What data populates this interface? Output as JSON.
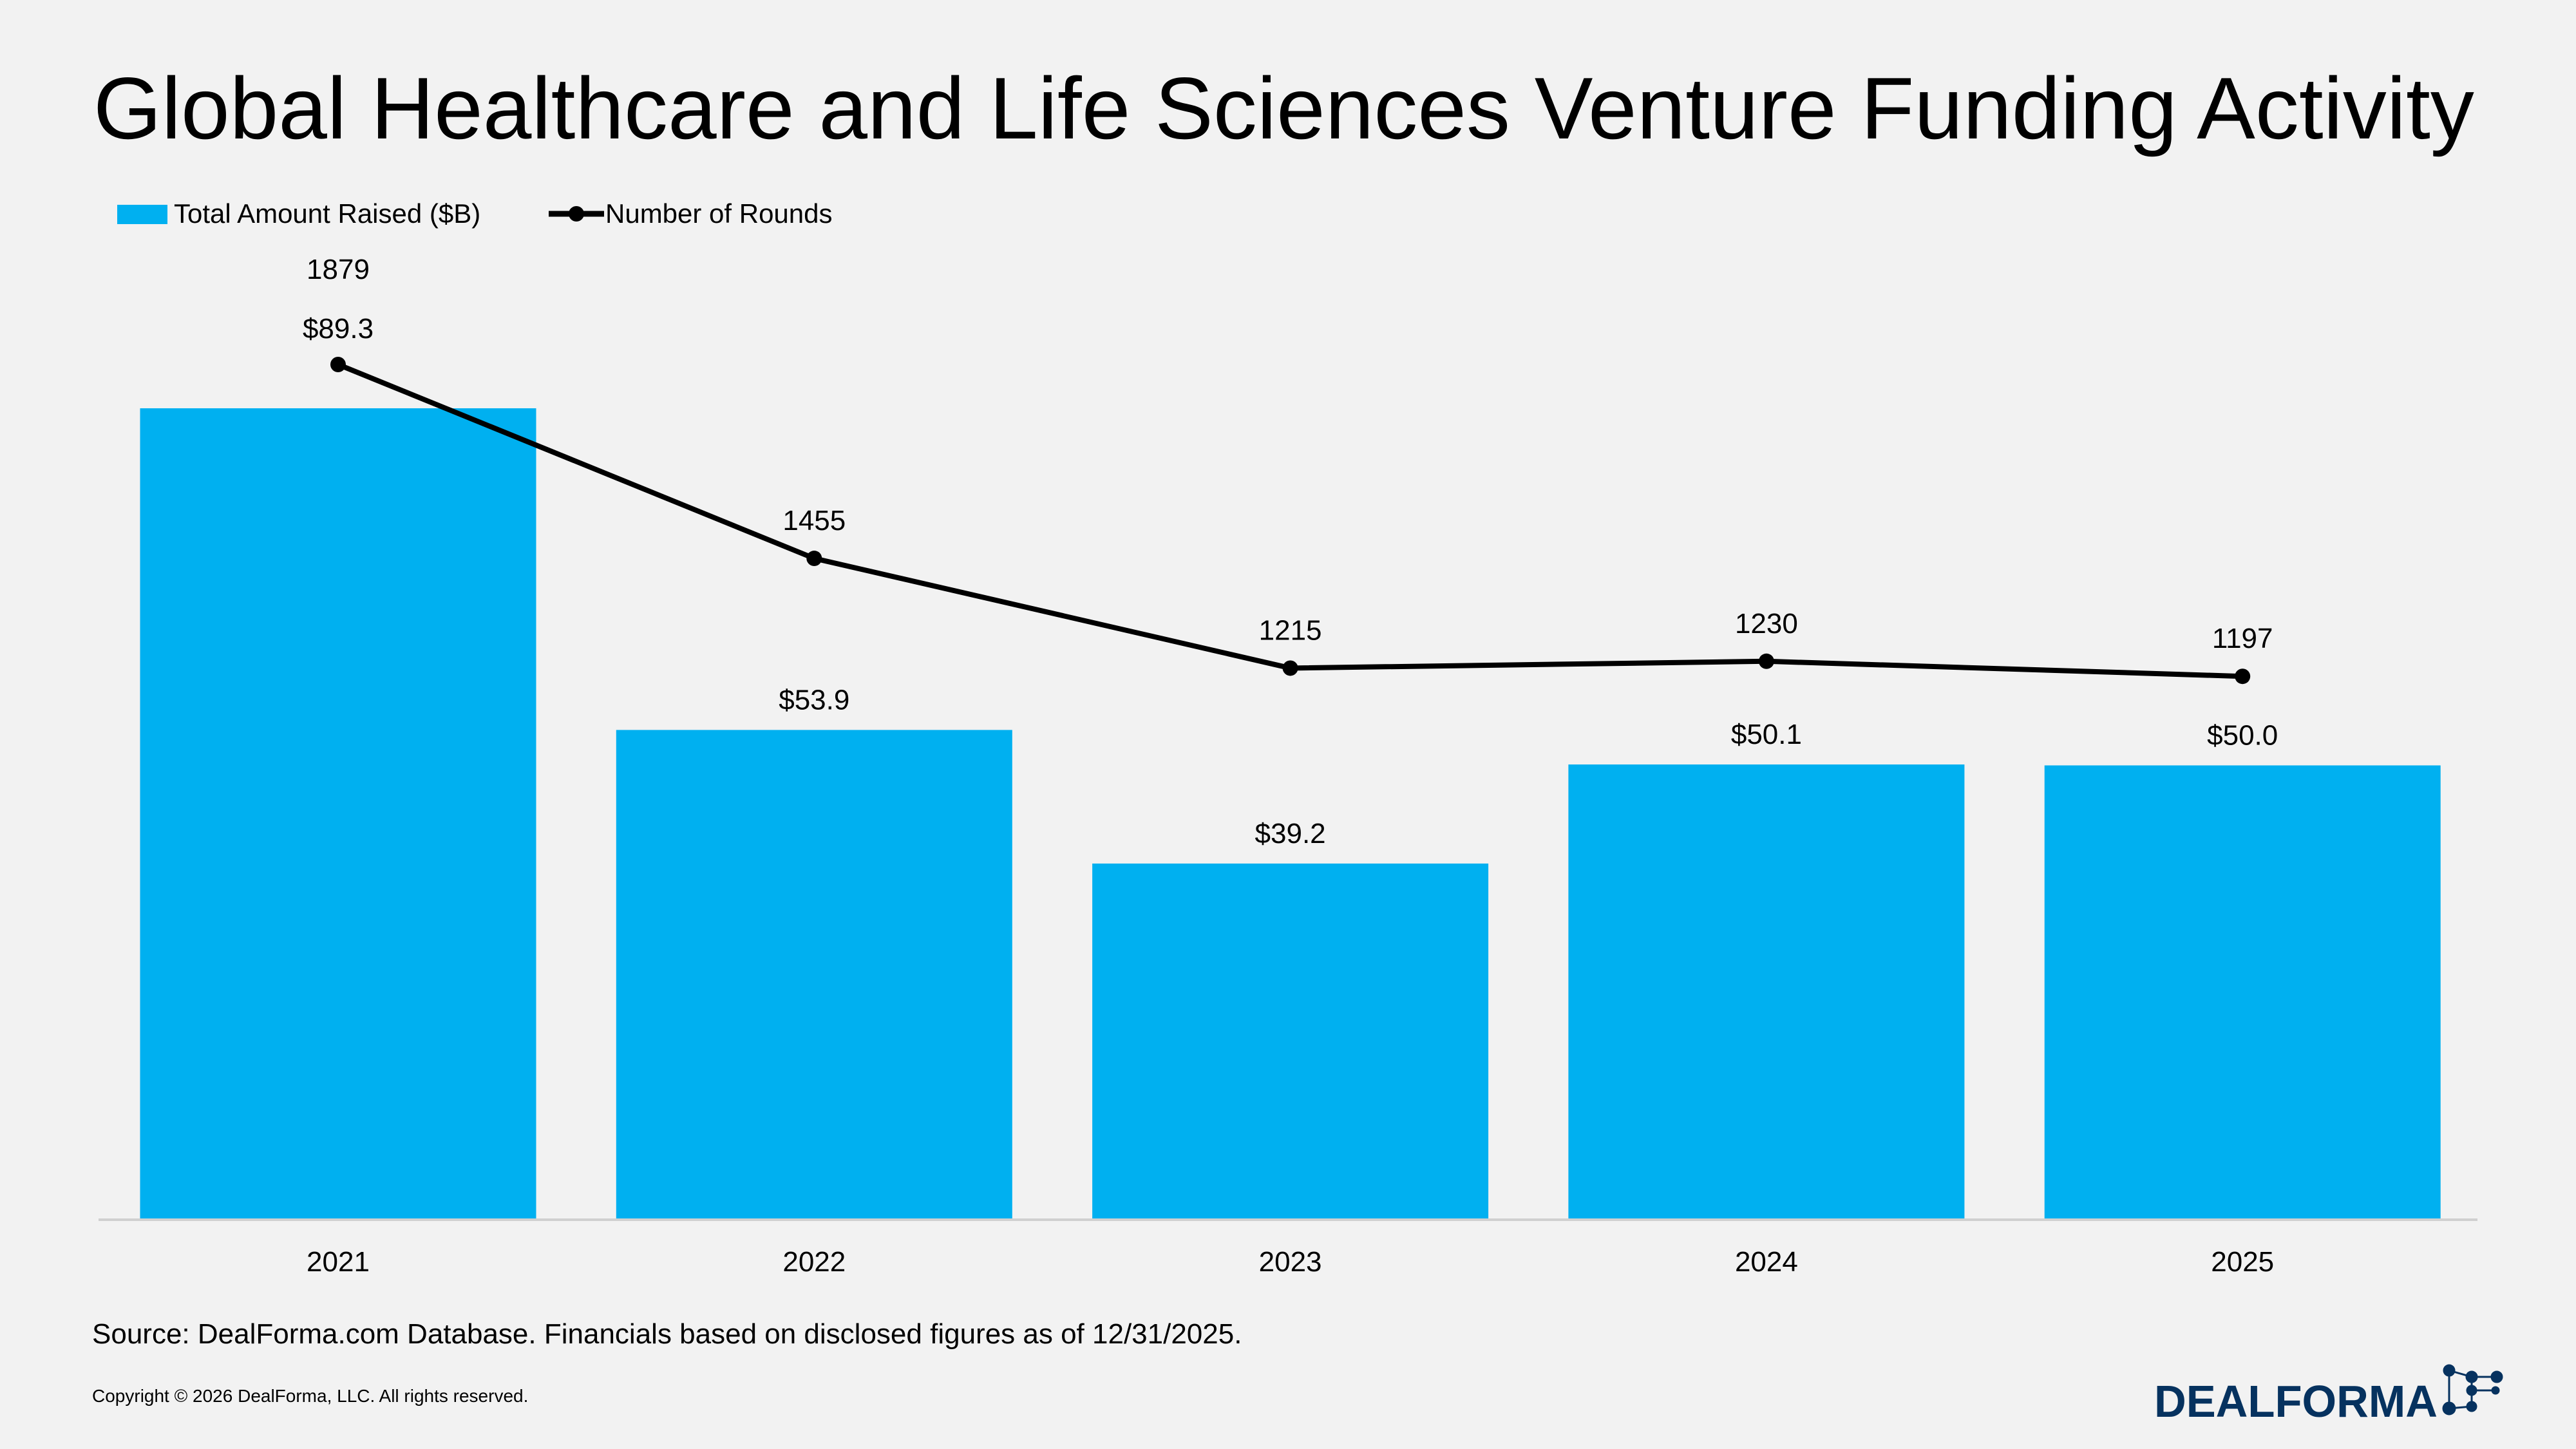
{
  "chart_data": {
    "type": "bar+line",
    "title": "Global Healthcare and Life Sciences Venture Funding Activity",
    "categories": [
      "2021",
      "2022",
      "2023",
      "2024",
      "2025"
    ],
    "series": [
      {
        "name": "Total Amount Raised ($B)",
        "type": "bar",
        "color": "#00b0f0",
        "values": [
          89.3,
          53.9,
          39.2,
          50.1,
          50.0
        ],
        "labels": [
          "$89.3",
          "$53.9",
          "$39.2",
          "$50.1",
          "$50.0"
        ]
      },
      {
        "name": "Number of Rounds",
        "type": "line",
        "color": "#000000",
        "values": [
          1879,
          1455,
          1215,
          1230,
          1197
        ],
        "labels": [
          "1879",
          "1455",
          "1215",
          "1230",
          "1197"
        ]
      }
    ],
    "legend_position": "top-left",
    "grid": false
  },
  "footer": {
    "source": "Source: DealForma.com Database. Financials based on disclosed figures as of 12/31/2025.",
    "copyright": "Copyright © 2026 DealForma, LLC. All rights reserved."
  },
  "logo": {
    "text": "DealForma",
    "color": "#06325f"
  }
}
